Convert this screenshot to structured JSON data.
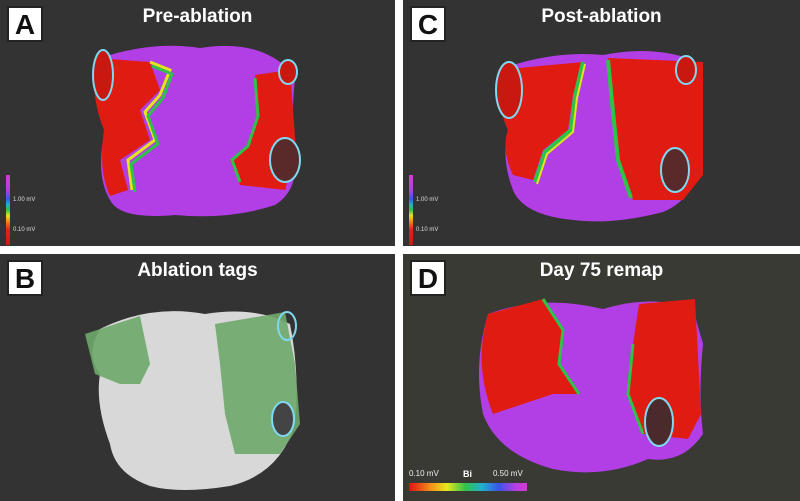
{
  "panels": {
    "a": {
      "letter": "A",
      "title": "Pre-ablation",
      "scale_high": "1.00 mV",
      "scale_low": "0.10 mV"
    },
    "b": {
      "letter": "B",
      "title": "Ablation tags"
    },
    "c": {
      "letter": "C",
      "title": "Post-ablation",
      "scale_high": "1.00 mV",
      "scale_low": "0.10 mV"
    },
    "d": {
      "letter": "D",
      "title": "Day 75 remap",
      "scale_low": "0.10 mV",
      "scale_mid": "Bi",
      "scale_high": "0.50 mV"
    }
  },
  "colors": {
    "panel_bg": "#333333",
    "panel_d_bg": "#3a3a34",
    "healthy_tissue": "#b23ee6",
    "scar_tissue": "#e01b12",
    "border_zone": "#2ec24b",
    "shell": "#d8d8d8",
    "tags": "#6ea86a",
    "vein_ring": "#7fd8f0"
  }
}
